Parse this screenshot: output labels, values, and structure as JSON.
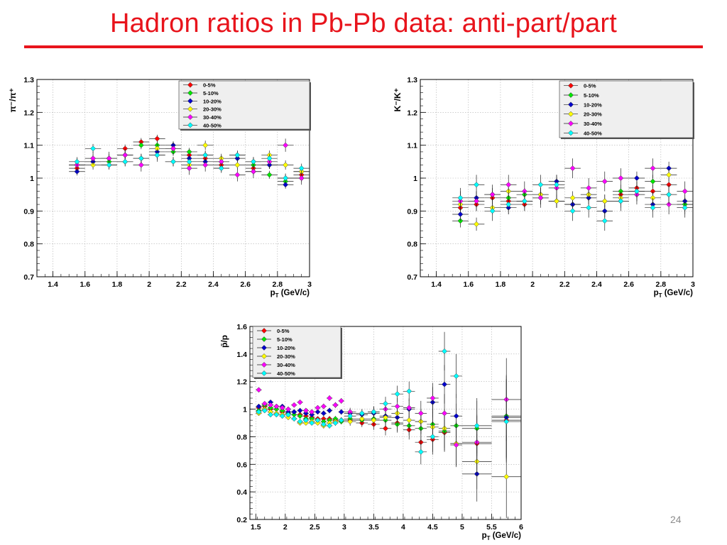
{
  "slide": {
    "title": "Hadron ratios in Pb-Pb data: anti-part/part",
    "page_number": "24"
  },
  "theme": {
    "title_color": "#e8141c",
    "series_colors": [
      "#ff0000",
      "#00e600",
      "#0000cc",
      "#ffff00",
      "#ff00ff",
      "#00ffff"
    ]
  },
  "chart_data": [
    {
      "id": "pion",
      "type": "scatter",
      "ylabel": "π⁻/π⁺",
      "xlabel": "p_T (GeV/c)",
      "xlim": [
        1.3,
        3.0
      ],
      "ylim": [
        0.7,
        1.3
      ],
      "xticks": [
        1.4,
        1.6,
        1.8,
        2,
        2.2,
        2.4,
        2.6,
        2.8,
        3
      ],
      "yticks": [
        0.7,
        0.8,
        0.9,
        1,
        1.1,
        1.2,
        1.3
      ],
      "grid": true,
      "legend_position": "top-right",
      "xerr": 0.05,
      "x": [
        1.55,
        1.65,
        1.75,
        1.85,
        1.95,
        2.05,
        2.15,
        2.25,
        2.35,
        2.45,
        2.55,
        2.65,
        2.75,
        2.85,
        2.95
      ],
      "series": [
        {
          "name": "0-5%",
          "yerr": 0.012,
          "values": [
            1.03,
            1.06,
            1.06,
            1.09,
            1.11,
            1.12,
            1.09,
            1.07,
            1.06,
            1.04,
            1.06,
            1.03,
            1.04,
            1.0,
            1.01
          ]
        },
        {
          "name": "5-10%",
          "yerr": 0.012,
          "values": [
            1.04,
            1.05,
            1.05,
            1.07,
            1.1,
            1.1,
            1.08,
            1.08,
            1.07,
            1.05,
            1.07,
            1.04,
            1.01,
            0.99,
            1.02
          ]
        },
        {
          "name": "10-20%",
          "yerr": 0.012,
          "values": [
            1.02,
            1.05,
            1.04,
            1.07,
            1.06,
            1.08,
            1.1,
            1.06,
            1.05,
            1.03,
            1.06,
            1.02,
            1.04,
            0.98,
            1.0
          ]
        },
        {
          "name": "20-30%",
          "yerr": 0.014,
          "values": [
            1.04,
            1.04,
            1.06,
            1.05,
            1.06,
            1.09,
            1.05,
            1.04,
            1.1,
            1.06,
            1.04,
            1.05,
            1.07,
            1.04,
            1.02
          ]
        },
        {
          "name": "30-40%",
          "yerr": 0.02,
          "values": [
            1.04,
            1.06,
            1.06,
            1.07,
            1.04,
            1.07,
            1.09,
            1.03,
            1.04,
            1.05,
            1.01,
            1.02,
            1.05,
            1.1,
            1.0
          ]
        },
        {
          "name": "40-50%",
          "yerr": 0.014,
          "values": [
            1.05,
            1.09,
            1.04,
            1.05,
            1.06,
            1.07,
            1.05,
            1.05,
            1.07,
            1.03,
            1.07,
            1.05,
            1.06,
            1.0,
            1.03
          ]
        }
      ]
    },
    {
      "id": "kaon",
      "type": "scatter",
      "ylabel": "K⁻/K⁺",
      "xlabel": "p_T (GeV/c)",
      "xlim": [
        1.3,
        3.0
      ],
      "ylim": [
        0.7,
        1.3
      ],
      "xticks": [
        1.4,
        1.6,
        1.8,
        2,
        2.2,
        2.4,
        2.6,
        2.8,
        3
      ],
      "yticks": [
        0.7,
        0.8,
        0.9,
        1,
        1.1,
        1.2,
        1.3
      ],
      "grid": true,
      "legend_position": "top-right",
      "xerr": 0.05,
      "x": [
        1.55,
        1.65,
        1.75,
        1.85,
        1.95,
        2.05,
        2.15,
        2.25,
        2.35,
        2.45,
        2.55,
        2.65,
        2.75,
        2.85,
        2.95
      ],
      "series": [
        {
          "name": "0-5%",
          "yerr": 0.02,
          "values": [
            0.91,
            0.92,
            0.94,
            0.93,
            0.92,
            0.94,
            0.93,
            0.92,
            0.94,
            0.93,
            0.95,
            0.97,
            0.96,
            0.98,
            0.92
          ]
        },
        {
          "name": "5-10%",
          "yerr": 0.02,
          "values": [
            0.87,
            0.93,
            0.95,
            0.94,
            0.95,
            0.95,
            0.93,
            0.92,
            0.95,
            0.9,
            0.96,
            0.95,
            0.99,
            0.95,
            0.92
          ]
        },
        {
          "name": "10-20%",
          "yerr": 0.02,
          "values": [
            0.89,
            0.94,
            0.95,
            0.91,
            0.93,
            0.94,
            0.99,
            0.92,
            0.94,
            0.9,
            0.93,
            1.0,
            0.92,
            1.03,
            0.93
          ]
        },
        {
          "name": "20-30%",
          "yerr": 0.02,
          "values": [
            0.92,
            0.86,
            0.91,
            0.96,
            0.93,
            0.95,
            0.93,
            0.94,
            0.95,
            0.93,
            0.94,
            0.96,
            0.94,
            1.01,
            0.91
          ]
        },
        {
          "name": "30-40%",
          "yerr": 0.03,
          "values": [
            0.93,
            0.93,
            0.95,
            0.98,
            0.96,
            0.94,
            0.97,
            1.03,
            0.97,
            0.99,
            1.0,
            0.95,
            1.03,
            0.92,
            0.96
          ]
        },
        {
          "name": "40-50%",
          "yerr": 0.03,
          "values": [
            0.94,
            0.98,
            0.9,
            0.92,
            0.93,
            0.98,
            0.98,
            0.9,
            0.91,
            0.87,
            0.93,
            0.96,
            0.91,
            0.95,
            0.91
          ]
        }
      ]
    },
    {
      "id": "proton",
      "type": "scatter",
      "ylabel": "p̄/p",
      "xlabel": "p_T (GeV/c)",
      "xlim": [
        1.4,
        6.0
      ],
      "ylim": [
        0.2,
        1.6
      ],
      "xticks": [
        1.5,
        2,
        2.5,
        3,
        3.5,
        4,
        4.5,
        5,
        5.5,
        6
      ],
      "yticks": [
        0.2,
        0.4,
        0.6,
        0.8,
        1,
        1.2,
        1.4,
        1.6
      ],
      "grid": true,
      "legend_position": "top-left",
      "x": [
        1.55,
        1.65,
        1.75,
        1.85,
        1.95,
        2.05,
        2.15,
        2.25,
        2.35,
        2.45,
        2.55,
        2.65,
        2.75,
        2.85,
        2.95,
        3.1,
        3.3,
        3.5,
        3.7,
        3.9,
        4.1,
        4.3,
        4.5,
        4.7,
        4.9,
        5.25,
        5.75
      ],
      "xerr": [
        0.05,
        0.05,
        0.05,
        0.05,
        0.05,
        0.05,
        0.05,
        0.05,
        0.05,
        0.05,
        0.05,
        0.05,
        0.05,
        0.05,
        0.05,
        0.1,
        0.1,
        0.1,
        0.1,
        0.1,
        0.1,
        0.1,
        0.1,
        0.1,
        0.1,
        0.25,
        0.25
      ],
      "yerr": [
        0.012,
        0.012,
        0.012,
        0.012,
        0.012,
        0.012,
        0.012,
        0.012,
        0.015,
        0.015,
        0.015,
        0.02,
        0.02,
        0.02,
        0.02,
        0.03,
        0.03,
        0.04,
        0.05,
        0.06,
        0.07,
        0.09,
        0.11,
        0.14,
        0.16,
        0.2,
        0.3
      ],
      "series": [
        {
          "name": "0-5%",
          "values": [
            1.01,
            1.02,
            1.0,
            1.0,
            0.98,
            0.97,
            0.98,
            0.96,
            0.95,
            0.94,
            0.93,
            0.93,
            0.93,
            0.92,
            0.92,
            0.92,
            0.9,
            0.89,
            0.86,
            0.9,
            0.85,
            0.76,
            0.78,
            0.83,
            0.75,
            0.75,
            0.92
          ]
        },
        {
          "name": "5-10%",
          "values": [
            0.99,
            1.03,
            1.01,
            1.0,
            0.99,
            0.97,
            0.96,
            0.95,
            0.93,
            0.93,
            0.92,
            0.91,
            0.92,
            0.93,
            0.91,
            0.93,
            0.92,
            0.93,
            0.92,
            0.89,
            0.88,
            0.86,
            0.89,
            0.84,
            0.88,
            0.86,
            0.95
          ]
        },
        {
          "name": "10-20%",
          "values": [
            1.02,
            1.0,
            1.05,
            1.02,
            1.02,
            0.98,
            0.98,
            0.99,
            0.97,
            0.96,
            0.98,
            0.97,
            0.99,
            1.03,
            0.98,
            0.97,
            0.96,
            0.97,
            0.95,
            0.94,
            1.0,
            0.91,
            1.05,
            1.18,
            0.95,
            0.53,
            0.94
          ]
        },
        {
          "name": "20-30%",
          "values": [
            0.97,
            1.0,
            0.98,
            0.97,
            0.96,
            0.94,
            0.93,
            0.9,
            0.9,
            0.91,
            0.9,
            0.88,
            0.9,
            0.91,
            0.92,
            0.91,
            0.93,
            0.92,
            0.94,
            0.97,
            0.92,
            0.91,
            0.87,
            0.86,
            0.75,
            0.62,
            0.51
          ]
        },
        {
          "name": "30-40%",
          "values": [
            1.14,
            1.04,
            1.03,
            1.02,
            1.01,
            1.0,
            1.03,
            1.05,
            0.99,
            0.98,
            1.01,
            1.02,
            1.08,
            1.03,
            1.06,
            0.98,
            0.97,
            0.98,
            1.0,
            1.02,
            1.01,
            0.97,
            1.08,
            0.97,
            0.74,
            0.76,
            1.07
          ]
        },
        {
          "name": "40-50%",
          "values": [
            0.98,
            0.99,
            0.96,
            0.96,
            0.95,
            0.96,
            0.93,
            0.91,
            0.92,
            0.9,
            0.92,
            0.89,
            0.88,
            0.9,
            0.92,
            0.95,
            0.97,
            0.98,
            1.04,
            1.11,
            1.13,
            0.69,
            0.8,
            1.42,
            1.24,
            0.88,
            0.91
          ]
        }
      ]
    }
  ]
}
